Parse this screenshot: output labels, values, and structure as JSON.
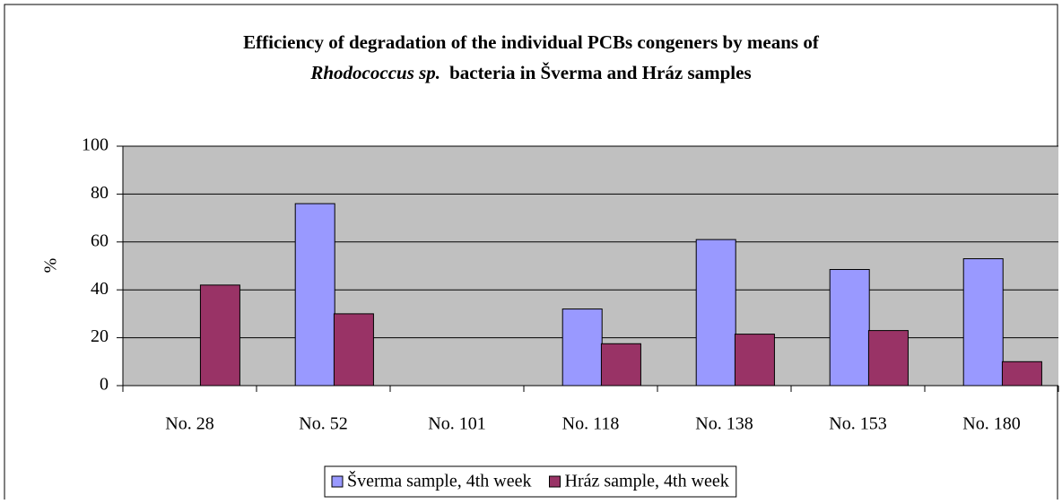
{
  "chart_data": {
    "type": "bar",
    "title": [
      "Efficiency of degradation of the individual PCBs congeners by means of",
      "Rhodococcus sp.",
      "bacteria in Šverma and Hráz samples"
    ],
    "y_label": "%",
    "categories": [
      "No. 28",
      "No. 52",
      "No. 101",
      "No. 118",
      "No. 138",
      "No. 153",
      "No. 180"
    ],
    "series": [
      {
        "name": "Šverma sample, 4th week",
        "color": "#9999ff",
        "values": [
          0,
          76,
          0,
          32,
          61,
          48.5,
          53
        ]
      },
      {
        "name": "Hráz sample, 4th week",
        "color": "#993366",
        "values": [
          42,
          30,
          0,
          17.5,
          21.5,
          23,
          10
        ]
      }
    ],
    "ylim": [
      0,
      100
    ],
    "yticks": [
      0,
      20,
      40,
      60,
      80,
      100
    ],
    "grid": true,
    "legend": "bottom",
    "plot_background": "#c0c0c0"
  }
}
